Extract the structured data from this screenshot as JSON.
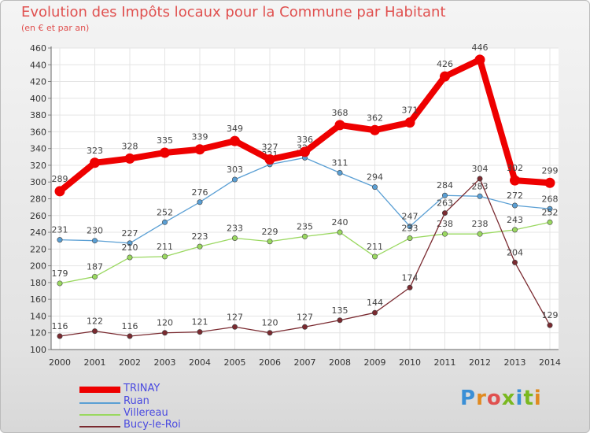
{
  "header": {
    "title": "Evolution des Impôts locaux pour la Commune par Habitant",
    "subtitle": "(en € et par an)"
  },
  "logo": {
    "text": "Proxiti",
    "letter_colors": [
      "#3a8fd6",
      "#e08a20",
      "#e0504f",
      "#7ab820",
      "#3a8fd6",
      "#7ab820",
      "#e08a20"
    ]
  },
  "chart_data": {
    "type": "line",
    "title": "Evolution des Impôts locaux pour la Commune par Habitant",
    "subtitle": "(en € et par an)",
    "x": [
      2000,
      2001,
      2002,
      2003,
      2004,
      2005,
      2006,
      2007,
      2008,
      2009,
      2010,
      2011,
      2012,
      2013,
      2014
    ],
    "ylim": [
      100,
      460
    ],
    "ytick_step": 20,
    "grid": true,
    "legend_position": "bottom-left",
    "series": [
      {
        "name": "TRINAY",
        "color": "#ee0000",
        "emphasis": true,
        "values": [
          289,
          323,
          328,
          335,
          339,
          349,
          327,
          336,
          368,
          362,
          371,
          426,
          446,
          302,
          299
        ]
      },
      {
        "name": "Ruan",
        "color": "#5a9fd4",
        "values": [
          231,
          230,
          227,
          252,
          276,
          303,
          321,
          329,
          311,
          294,
          247,
          284,
          283,
          272,
          268
        ]
      },
      {
        "name": "Villereau",
        "color": "#9ad860",
        "values": [
          179,
          187,
          210,
          211,
          223,
          233,
          229,
          235,
          240,
          211,
          233,
          238,
          238,
          243,
          252
        ]
      },
      {
        "name": "Bucy-le-Roi",
        "color": "#7a2a30",
        "values": [
          116,
          122,
          116,
          120,
          121,
          127,
          120,
          127,
          135,
          144,
          174,
          263,
          304,
          204,
          129
        ]
      }
    ]
  }
}
